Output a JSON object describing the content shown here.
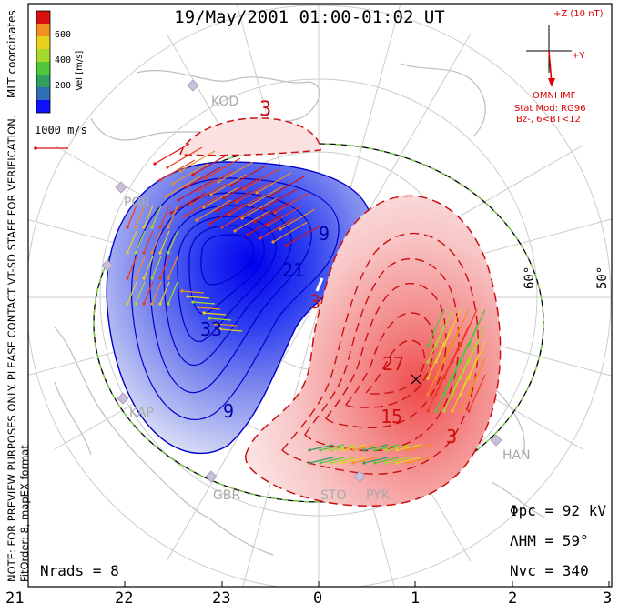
{
  "title": "19/May/2001 01:00-01:02 UT",
  "coordinate_note": "MLT coordinates",
  "preview_note": "NOTE: FOR PREVIEW PURPOSES ONLY. PLEASE CONTACT VT-SD STAFF FOR VERIFICATION.",
  "fit_note": "FitOrder: 8, mapEX format",
  "colorbar": {
    "label": "Vel [m/s]",
    "ticks": [
      "600",
      "400",
      "200"
    ],
    "colors": [
      "#1010ff",
      "#2f6fb5",
      "#30a060",
      "#4ec83a",
      "#a8d82c",
      "#e8d020",
      "#f09020",
      "#ee3a1a",
      "#d81010"
    ]
  },
  "reference_vector_label": "1000 m/s",
  "imf": {
    "z_label": "+Z (10 nT)",
    "y_label": "+Y",
    "source": "OMNI IMF",
    "model_line1": "Stat Mod: RG96",
    "model_line2": "Bz-, 6<BT<12"
  },
  "latitude_labels": [
    "60°",
    "50°"
  ],
  "mlt_ticks": [
    "21",
    "22",
    "23",
    "0",
    "1",
    "2",
    "3"
  ],
  "contour_labels": [
    "3",
    "9",
    "21",
    "33",
    "9",
    "3",
    "27",
    "15",
    "3"
  ],
  "stations": [
    "KOD",
    "PGR",
    "KAP",
    "GBR",
    "STO",
    "PYK",
    "HAN"
  ],
  "stats": {
    "phi_pc": "Φpc = 92 kV",
    "lambda_hm": "ΛHM = 59°",
    "n_vc": "Nvc = 340",
    "n_rads": "Nrads = 8"
  },
  "colors": {
    "negative_cell": "#2020ff",
    "positive_cell": "#ee3030",
    "hm_boundary": "#7fd44a",
    "land": "#bfbfbf",
    "grid": "#c8c8c8"
  }
}
